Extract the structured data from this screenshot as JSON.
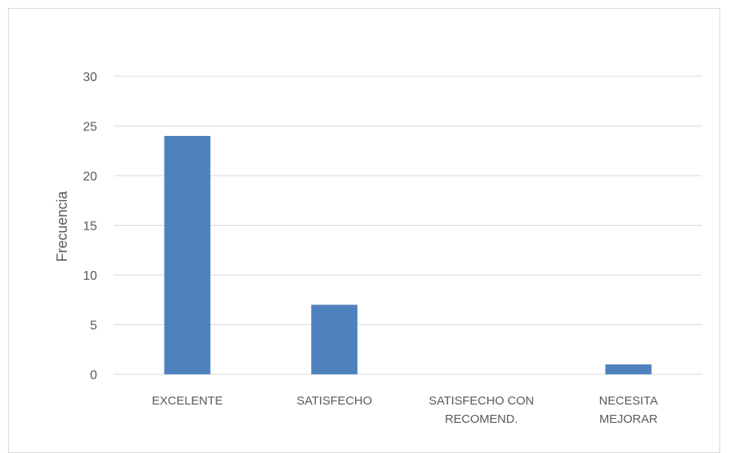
{
  "chart_data": {
    "type": "bar",
    "title": "",
    "xlabel": "",
    "ylabel": "Frecuencia",
    "ylim": [
      0,
      30
    ],
    "yticks": [
      0,
      5,
      10,
      15,
      20,
      25,
      30
    ],
    "grid": true,
    "legend": "none",
    "categories": [
      [
        "EXCELENTE"
      ],
      [
        "SATISFECHO"
      ],
      [
        "SATISFECHO CON",
        "RECOMEND."
      ],
      [
        "NECESITA",
        "MEJORAR"
      ]
    ],
    "values": [
      24,
      7,
      0,
      1
    ],
    "bar_color": "#4f81bd"
  }
}
